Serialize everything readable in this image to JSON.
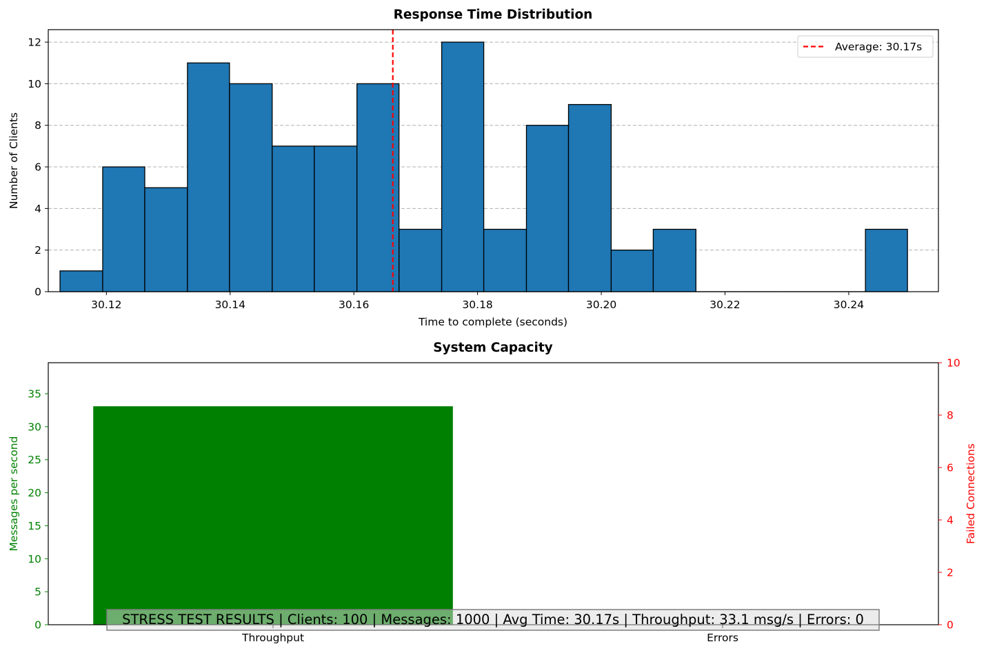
{
  "chart_data": [
    {
      "type": "bar",
      "title": "Response Time Distribution",
      "xlabel": "Time to complete (seconds)",
      "ylabel": "Number of Clients",
      "xlim": [
        30.1106,
        30.2545
      ],
      "ylim": [
        0,
        12.6
      ],
      "xticks": [
        "30.12",
        "30.14",
        "30.16",
        "30.18",
        "30.20",
        "30.22",
        "30.24"
      ],
      "xtick_values": [
        30.12,
        30.14,
        30.16,
        30.18,
        30.2,
        30.22,
        30.24
      ],
      "yticks": [
        "0",
        "2",
        "4",
        "6",
        "8",
        "10",
        "12"
      ],
      "ytick_values": [
        0,
        2,
        4,
        6,
        8,
        10,
        12
      ],
      "grid": "y-dashed",
      "bin_edges": [
        30.1125,
        30.1194,
        30.1262,
        30.1331,
        30.1399,
        30.1468,
        30.1536,
        30.1605,
        30.1673,
        30.1742,
        30.181,
        30.1879,
        30.1947,
        30.2016,
        30.2084,
        30.2153,
        30.2221,
        30.229,
        30.2358,
        30.2427,
        30.2495
      ],
      "values": [
        1,
        6,
        5,
        11,
        10,
        7,
        7,
        10,
        3,
        12,
        3,
        8,
        9,
        2,
        3,
        0,
        0,
        0,
        0,
        3
      ],
      "bar_color": "#1f77b4",
      "average": {
        "value": 30.1663,
        "label": "Average: 30.17s",
        "color": "#ff0000"
      },
      "legend": "top-right"
    },
    {
      "type": "bar",
      "title": "System Capacity",
      "categories": [
        "Throughput",
        "Errors"
      ],
      "left_axis": {
        "label": "Messages per second",
        "color": "#008000",
        "ylim": [
          0,
          39.7
        ],
        "yticks": [
          "0",
          "5",
          "10",
          "15",
          "20",
          "25",
          "30",
          "35"
        ],
        "ytick_values": [
          0,
          5,
          10,
          15,
          20,
          25,
          30,
          35
        ],
        "values": [
          33.1,
          0
        ],
        "bar_color": "#008000"
      },
      "right_axis": {
        "label": "Failed Connections",
        "color": "#ff0000",
        "ylim": [
          0,
          10
        ],
        "yticks": [
          "0",
          "2",
          "4",
          "6",
          "8",
          "10"
        ],
        "ytick_values": [
          0,
          2,
          4,
          6,
          8,
          10
        ],
        "values": [
          0,
          0
        ],
        "bar_color": "#ff0000"
      },
      "annotation": "STRESS TEST RESULTS | Clients: 100 | Messages: 1000 | Avg Time: 30.17s | Throughput: 33.1 msg/s | Errors: 0"
    }
  ]
}
